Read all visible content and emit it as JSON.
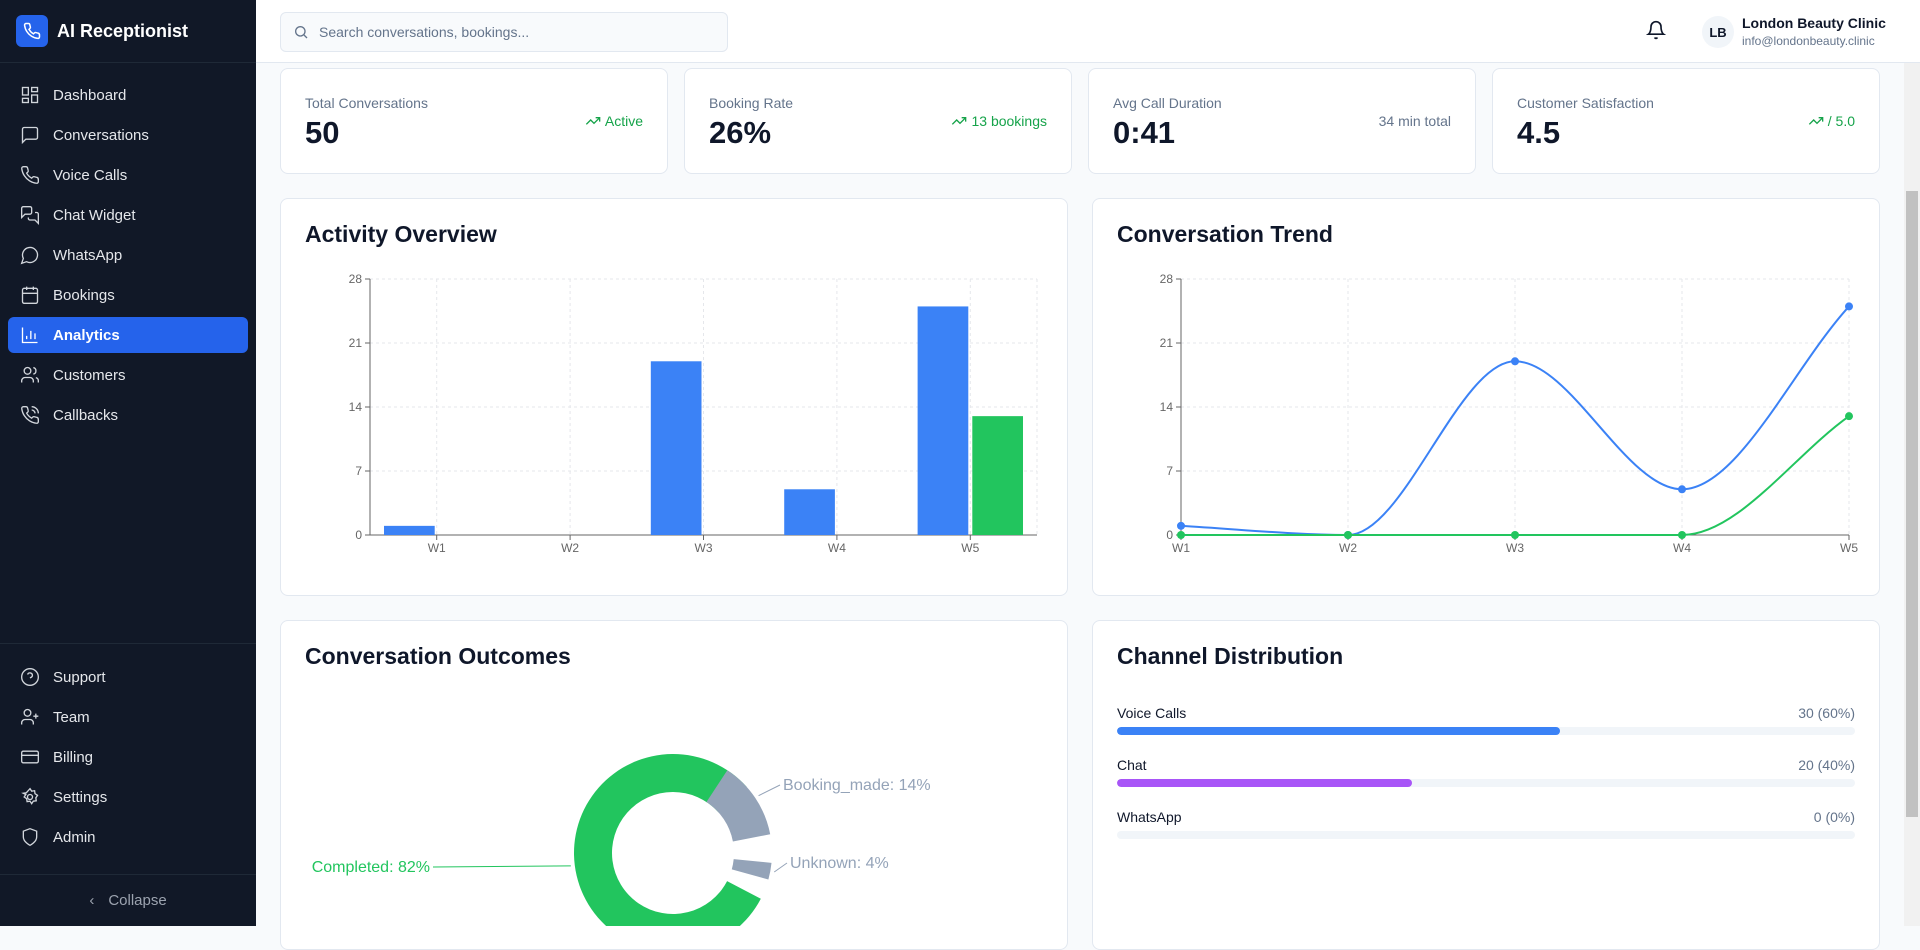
{
  "app": {
    "title": "AI Receptionist"
  },
  "sidebar": {
    "items": [
      {
        "label": "Dashboard",
        "icon": "dashboard-icon"
      },
      {
        "label": "Conversations",
        "icon": "message-square-icon"
      },
      {
        "label": "Voice Calls",
        "icon": "phone-icon"
      },
      {
        "label": "Chat Widget",
        "icon": "messages-icon"
      },
      {
        "label": "WhatsApp",
        "icon": "message-circle-icon"
      },
      {
        "label": "Bookings",
        "icon": "calendar-icon"
      },
      {
        "label": "Analytics",
        "icon": "bar-chart-icon",
        "active": true
      },
      {
        "label": "Customers",
        "icon": "users-icon"
      },
      {
        "label": "Callbacks",
        "icon": "phone-callback-icon"
      }
    ],
    "bottom": [
      {
        "label": "Support",
        "icon": "help-circle-icon"
      },
      {
        "label": "Team",
        "icon": "user-plus-icon"
      },
      {
        "label": "Billing",
        "icon": "credit-card-icon"
      },
      {
        "label": "Settings",
        "icon": "gear-icon"
      },
      {
        "label": "Admin",
        "icon": "shield-icon"
      }
    ],
    "collapse": "Collapse"
  },
  "header": {
    "search_placeholder": "Search conversations, bookings...",
    "user": {
      "initials": "LB",
      "name": "London Beauty Clinic",
      "email": "info@londonbeauty.clinic"
    }
  },
  "stats": [
    {
      "label": "Total Conversations",
      "value": "50",
      "trend": "Active",
      "positive": true
    },
    {
      "label": "Booking Rate",
      "value": "26%",
      "trend": "13 bookings",
      "positive": true
    },
    {
      "label": "Avg Call Duration",
      "value": "0:41",
      "trend": "34 min total",
      "positive": false
    },
    {
      "label": "Customer Satisfaction",
      "value": "4.5",
      "trend": "/ 5.0",
      "positive": true
    }
  ],
  "colors": {
    "blue": "#3b82f6",
    "green": "#22c55e",
    "gray": "#94a3b8",
    "purple": "#a855f7",
    "primary": "#2563eb"
  },
  "activity": {
    "title": "Activity Overview"
  },
  "trend": {
    "title": "Conversation Trend"
  },
  "outcomes": {
    "title": "Conversation Outcomes"
  },
  "channels": {
    "title": "Channel Distribution",
    "items": [
      {
        "label": "Voice Calls",
        "value": "30 (60%)",
        "percent": 60,
        "color": "#3b82f6"
      },
      {
        "label": "Chat",
        "value": "20 (40%)",
        "percent": 40,
        "color": "#a855f7"
      },
      {
        "label": "WhatsApp",
        "value": "0 (0%)",
        "percent": 0,
        "color": "#22c55e"
      }
    ]
  },
  "chart_data": [
    {
      "type": "bar",
      "title": "Activity Overview",
      "categories": [
        "W1",
        "W2",
        "W3",
        "W4",
        "W5"
      ],
      "series": [
        {
          "values": [
            1,
            0,
            19,
            5,
            25
          ],
          "color": "#3b82f6"
        },
        {
          "values": [
            0,
            0,
            0,
            0,
            13
          ],
          "color": "#22c55e"
        }
      ],
      "ylim": [
        0,
        28
      ],
      "yticks": [
        0,
        7,
        14,
        21,
        28
      ],
      "grid": true
    },
    {
      "type": "line",
      "title": "Conversation Trend",
      "categories": [
        "W1",
        "W2",
        "W3",
        "W4",
        "W5"
      ],
      "series": [
        {
          "values": [
            1,
            0,
            19,
            5,
            25
          ],
          "color": "#3b82f6"
        },
        {
          "values": [
            0,
            0,
            0,
            0,
            13
          ],
          "color": "#22c55e"
        }
      ],
      "ylim": [
        0,
        28
      ],
      "yticks": [
        0,
        7,
        14,
        21,
        28
      ],
      "grid": true
    },
    {
      "type": "pie",
      "title": "Conversation Outcomes",
      "donut": true,
      "slices": [
        {
          "label": "Completed: 82%",
          "name": "Completed",
          "value": 82,
          "color": "#22c55e"
        },
        {
          "label": "Booking_made: 14%",
          "name": "Booking_made",
          "value": 14,
          "color": "#94a3b8"
        },
        {
          "label": "Unknown: 4%",
          "name": "Unknown",
          "value": 4,
          "color": "#94a3b8"
        }
      ]
    }
  ]
}
